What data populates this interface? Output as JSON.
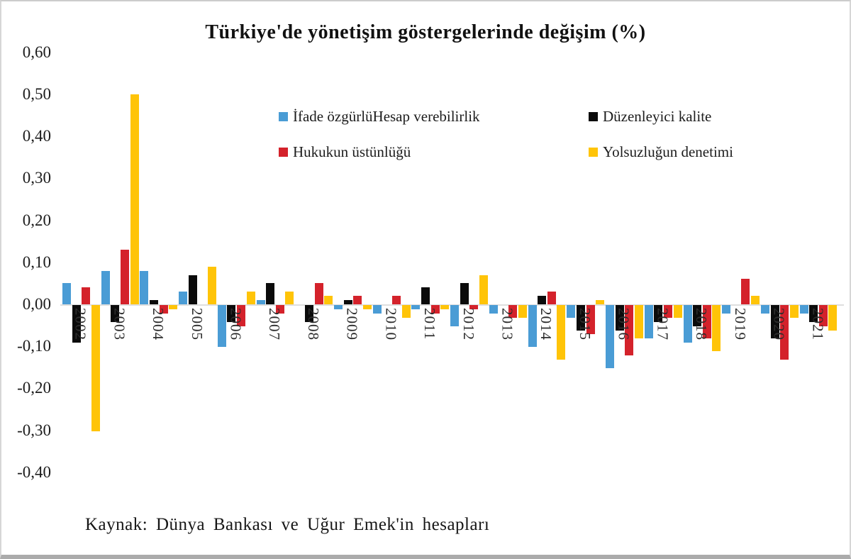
{
  "title": "Türkiye'de yönetişim göstergelerinde değişim (%)",
  "source_note": "Kaynak: Dünya Bankası ve Uğur Emek'in hesapları",
  "chart_data": {
    "type": "bar",
    "title": "Türkiye'de yönetişim göstergelerinde değişim (%)",
    "xlabel": "",
    "ylabel": "",
    "ylim": [
      -0.4,
      0.6
    ],
    "ytick_step": 0.1,
    "ytick_labels": [
      "0,60",
      "0,50",
      "0,40",
      "0,30",
      "0,20",
      "0,10",
      "0,00",
      "-0,10",
      "-0,20",
      "-0,30",
      "-0,40"
    ],
    "grid": false,
    "legend_position": "upper-center-two-columns",
    "decimal_separator": ",",
    "categories": [
      "2002",
      "2003",
      "2004",
      "2005",
      "2006",
      "2007",
      "2008",
      "2009",
      "2010",
      "2011",
      "2012",
      "2013",
      "2014",
      "2015",
      "2016",
      "2017",
      "2018",
      "2019",
      "2020",
      "2021"
    ],
    "series": [
      {
        "name": "İfade özgürlüHesap verebilirlik",
        "color": "#4A9CD5",
        "values": [
          0.05,
          0.08,
          0.08,
          0.03,
          -0.1,
          0.01,
          0.0,
          -0.01,
          -0.02,
          -0.01,
          -0.05,
          -0.02,
          -0.1,
          -0.03,
          -0.15,
          -0.08,
          -0.09,
          -0.02,
          -0.02,
          -0.02
        ]
      },
      {
        "name": "Düzenleyici kalite",
        "color": "#0b0b0b",
        "values": [
          -0.09,
          -0.04,
          0.01,
          0.07,
          -0.04,
          0.05,
          -0.04,
          0.01,
          0.0,
          0.04,
          0.05,
          0.0,
          0.02,
          -0.06,
          -0.06,
          -0.04,
          -0.05,
          0.0,
          -0.08,
          -0.04
        ]
      },
      {
        "name": "Hukukun üstünlüğü",
        "color": "#D4222B",
        "values": [
          0.04,
          0.13,
          -0.02,
          0.0,
          -0.05,
          -0.02,
          0.05,
          0.02,
          0.02,
          -0.02,
          -0.01,
          -0.03,
          0.03,
          -0.07,
          -0.12,
          -0.03,
          -0.08,
          0.06,
          -0.13,
          -0.05
        ]
      },
      {
        "name": "Yolsuzluğun denetimi",
        "color": "#FFC408",
        "values": [
          -0.3,
          0.5,
          -0.01,
          0.09,
          0.03,
          0.03,
          0.02,
          -0.01,
          -0.03,
          -0.01,
          0.07,
          -0.03,
          -0.13,
          0.01,
          -0.08,
          -0.03,
          -0.11,
          0.02,
          -0.03,
          -0.06
        ]
      }
    ]
  }
}
